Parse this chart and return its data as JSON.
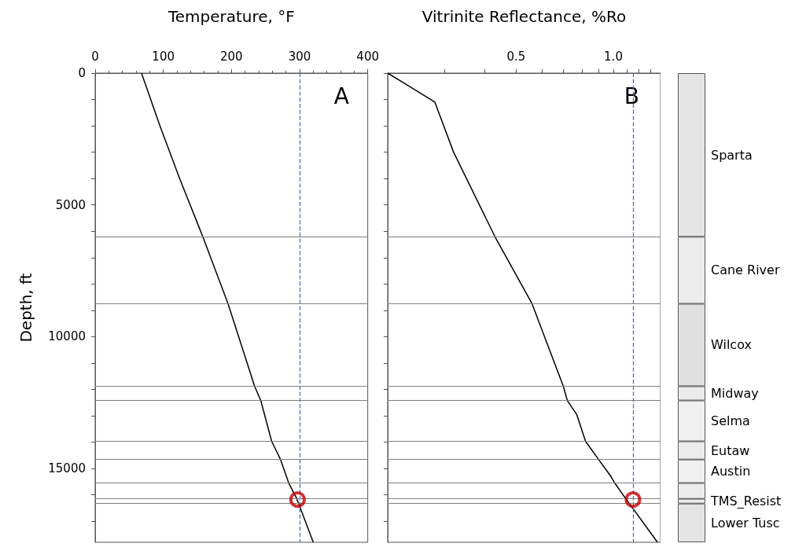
{
  "chart_data": [
    {
      "type": "line",
      "xlabel": "Temperature, °F",
      "ylabel": "Depth, ft",
      "annotations": [
        "A"
      ],
      "xlim": [
        0,
        400
      ],
      "xticks": [
        0,
        100,
        200,
        300,
        400
      ],
      "ylim": [
        17800,
        0
      ],
      "yticks": [
        0,
        {
          "value": 1000,
          "label": null
        },
        {
          "value": 2000,
          "label": null
        },
        {
          "value": 3000,
          "label": null
        },
        {
          "value": 4000,
          "label": null
        },
        5000,
        {
          "value": 6000,
          "label": null
        },
        {
          "value": 7000,
          "label": null
        },
        {
          "value": 8000,
          "label": null
        },
        {
          "value": 9000,
          "label": null
        },
        10000,
        {
          "value": 11000,
          "label": null
        },
        {
          "value": 12000,
          "label": null
        },
        {
          "value": 13000,
          "label": null
        },
        {
          "value": 14000,
          "label": null
        },
        15000,
        {
          "value": 16000,
          "label": null
        },
        {
          "value": 17000,
          "label": null
        }
      ],
      "grid": false,
      "legend": false,
      "marker": "none",
      "series": [
        {
          "color": "#000000",
          "x": [
            68,
            95,
            124,
            158,
            195,
            234,
            243,
            259,
            272,
            284,
            296,
            320
          ],
          "values": [
            0,
            2000,
            4000,
            6210,
            8750,
            11880,
            12420,
            13970,
            14660,
            15550,
            16150,
            17800
          ]
        },
        {
          "type": "scatter",
          "marker": "circle",
          "color": "#c00000",
          "x": [
            297
          ],
          "values": [
            16180
          ]
        }
      ],
      "ref_lines": [
        {
          "axis": "x",
          "value": 300,
          "label": null,
          "color": "#4472c4",
          "line_style": "dashed"
        },
        {
          "axis": "y",
          "value": 6210,
          "label": null,
          "color": "#808080"
        },
        {
          "axis": "y",
          "value": 8750,
          "label": null,
          "color": "#808080"
        },
        {
          "axis": "y",
          "value": 11880,
          "label": null,
          "color": "#808080"
        },
        {
          "axis": "y",
          "value": 12420,
          "label": null,
          "color": "#808080"
        },
        {
          "axis": "y",
          "value": 13970,
          "label": null,
          "color": "#808080"
        },
        {
          "axis": "y",
          "value": 14660,
          "label": null,
          "color": "#808080"
        },
        {
          "axis": "y",
          "value": 15550,
          "label": null,
          "color": "#808080"
        },
        {
          "axis": "y",
          "value": 16150,
          "label": null,
          "color": "#808080"
        },
        {
          "axis": "y",
          "value": 16330,
          "label": null,
          "color": "#808080"
        }
      ]
    },
    {
      "type": "line",
      "xlabel": "Vitrinite Reflectance, %Ro",
      "annotations": [
        "B"
      ],
      "log": "x",
      "xlim": [
        0.2,
        1.4
      ],
      "xticks": [
        {
          "value": 0.3,
          "label": null
        },
        {
          "value": 0.4,
          "label": null
        },
        0.5,
        {
          "value": 0.6,
          "label": null
        },
        {
          "value": 0.7,
          "label": null
        },
        {
          "value": 0.8,
          "label": null
        },
        {
          "value": 0.9,
          "label": null
        },
        {
          "value": 1,
          "label": "1.0"
        },
        {
          "value": 1.1,
          "label": null
        },
        {
          "value": 1.2,
          "label": null
        },
        {
          "value": 1.3,
          "label": null
        }
      ],
      "ylim": [
        17800,
        0
      ],
      "yticks": [
        0,
        {
          "value": 1000,
          "label": null
        },
        {
          "value": 2000,
          "label": null
        },
        {
          "value": 3000,
          "label": null
        },
        {
          "value": 4000,
          "label": null
        },
        5000,
        {
          "value": 6000,
          "label": null
        },
        {
          "value": 7000,
          "label": null
        },
        {
          "value": 8000,
          "label": null
        },
        {
          "value": 9000,
          "label": null
        },
        10000,
        {
          "value": 11000,
          "label": null
        },
        {
          "value": 12000,
          "label": null
        },
        {
          "value": 13000,
          "label": null
        },
        {
          "value": 14000,
          "label": null
        },
        15000,
        {
          "value": 16000,
          "label": null
        },
        {
          "value": 17000,
          "label": null
        }
      ],
      "tick_labels": "x",
      "grid": false,
      "legend": false,
      "marker": "none",
      "series": [
        {
          "color": "#000000",
          "x": [
            0.2,
            0.28,
            0.32,
            0.43,
            0.56,
            0.7,
            0.72,
            0.77,
            0.82,
            0.9,
            0.98,
            1.01,
            1.08,
            1.37
          ],
          "values": [
            0,
            1100,
            3000,
            6210,
            8750,
            11880,
            12420,
            12950,
            13970,
            14660,
            15280,
            15550,
            16060,
            17800
          ]
        },
        {
          "type": "scatter",
          "marker": "circle",
          "color": "#c00000",
          "x": [
            1.15
          ],
          "values": [
            16180
          ]
        }
      ],
      "ref_lines": [
        {
          "axis": "x",
          "value": 1.15,
          "label": null,
          "color": "#4472c4",
          "line_style": "dashed"
        },
        {
          "axis": "y",
          "value": 6210,
          "label": null,
          "color": "#808080"
        },
        {
          "axis": "y",
          "value": 8750,
          "label": null,
          "color": "#808080"
        },
        {
          "axis": "y",
          "value": 11880,
          "label": null,
          "color": "#808080"
        },
        {
          "axis": "y",
          "value": 12420,
          "label": null,
          "color": "#808080"
        },
        {
          "axis": "y",
          "value": 13970,
          "label": null,
          "color": "#808080"
        },
        {
          "axis": "y",
          "value": 14660,
          "label": null,
          "color": "#808080"
        },
        {
          "axis": "y",
          "value": 15550,
          "label": null,
          "color": "#808080"
        },
        {
          "axis": "y",
          "value": 16150,
          "label": null,
          "color": "#808080"
        },
        {
          "axis": "y",
          "value": 16330,
          "label": null,
          "color": "#808080"
        }
      ]
    },
    {
      "type": "bar",
      "stacked": true,
      "categories": [
        null
      ],
      "ylim": [
        17800,
        0
      ],
      "tick_labels": false,
      "legend": false,
      "series": [
        {
          "name": "Sparta",
          "color": "#e4e4e4",
          "values": [
            6210
          ]
        },
        {
          "name": "Cane River",
          "color": "#ececec",
          "values": [
            2540
          ]
        },
        {
          "name": "Wilcox",
          "color": "#e0e0e0",
          "values": [
            3130
          ]
        },
        {
          "name": "Midway",
          "color": "#ececec",
          "values": [
            540
          ]
        },
        {
          "name": "Selma",
          "color": "#f0f0f0",
          "values": [
            1550
          ]
        },
        {
          "name": "Eutaw",
          "color": "#ececec",
          "values": [
            690
          ]
        },
        {
          "name": "Austin",
          "color": "#f0f0f0",
          "values": [
            890
          ]
        },
        {
          "color": "#ececec",
          "values": [
            600
          ]
        },
        {
          "name": "TMS_Resist",
          "color": "#ececec",
          "values": [
            180
          ]
        },
        {
          "name": "Lower Tusc",
          "color": "#e4e4e4",
          "values": [
            1470
          ]
        }
      ]
    }
  ]
}
